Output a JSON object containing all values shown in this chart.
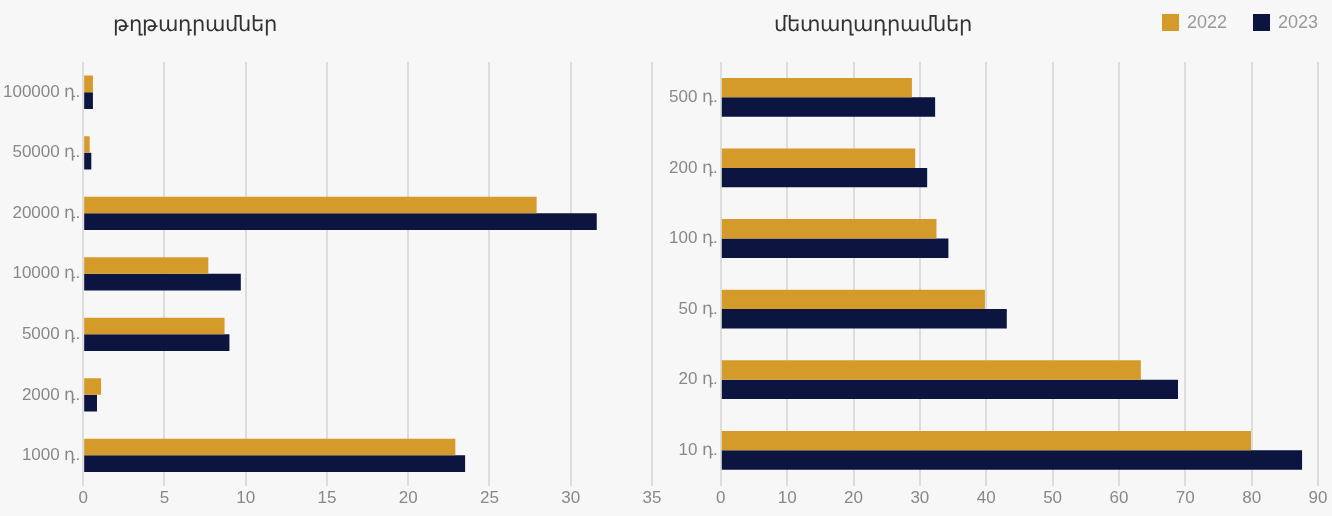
{
  "chart_data": [
    {
      "type": "bar",
      "orientation": "horizontal",
      "title": "թղթադրամներ",
      "categories": [
        "100000 դ.",
        "50000 դ.",
        "20000 դ.",
        "10000 դ.",
        "5000 դ.",
        "2000 դ.",
        "1000 դ."
      ],
      "series": [
        {
          "color": "#d49a2a",
          "values": [
            0.6,
            0.4,
            27.9,
            7.7,
            8.7,
            1.1,
            22.9
          ]
        },
        {
          "color": "#0c1540",
          "values": [
            0.6,
            0.5,
            31.6,
            9.7,
            9.0,
            0.85,
            23.5
          ]
        }
      ],
      "xlim": [
        0,
        35
      ],
      "xticks": [
        0,
        5,
        10,
        15,
        20,
        25,
        30,
        35
      ],
      "grid": "x",
      "legend": false
    },
    {
      "type": "bar",
      "orientation": "horizontal",
      "title": "մետաղադրամներ",
      "categories": [
        "500 դ.",
        "200 դ.",
        "100 դ.",
        "50 դ.",
        "20 դ.",
        "10 դ."
      ],
      "series": [
        {
          "name": "2022",
          "color": "#d49a2a",
          "values": [
            28.8,
            29.3,
            32.5,
            39.8,
            63.3,
            79.9
          ]
        },
        {
          "name": "2023",
          "color": "#0c1540",
          "values": [
            32.3,
            31.1,
            34.3,
            43.1,
            68.9,
            87.6
          ]
        }
      ],
      "xlim": [
        0,
        90
      ],
      "xticks": [
        0,
        10,
        20,
        30,
        40,
        50,
        60,
        70,
        80,
        90
      ],
      "grid": "x",
      "legend": "top right"
    }
  ]
}
